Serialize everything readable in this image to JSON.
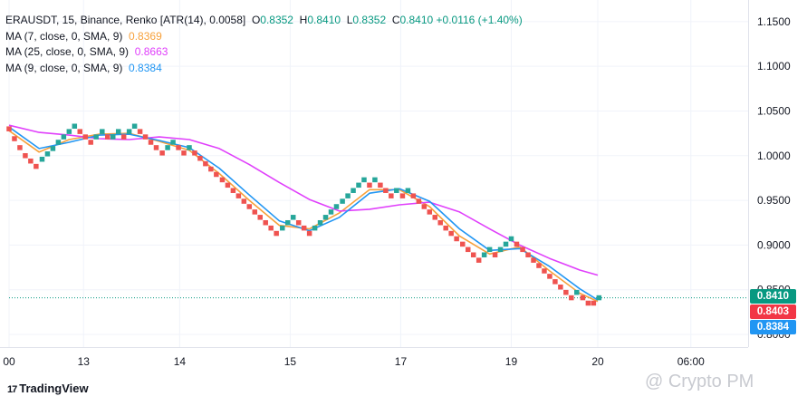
{
  "header": {
    "title": "ERAUSDT, 15, Binance, Renko [ATR(14), 0.0058]",
    "ohlc": [
      {
        "k": "O",
        "v": "0.8352"
      },
      {
        "k": "H",
        "v": "0.8410"
      },
      {
        "k": "L",
        "v": "0.8352"
      },
      {
        "k": "C",
        "v": "0.8410"
      }
    ],
    "change": "+0.0116 (+1.40%)"
  },
  "indicators": [
    {
      "label": "MA (7, close, 0, SMA, 9)",
      "value": "0.8369",
      "color": "#f7a13b"
    },
    {
      "label": "MA (25, close, 0, SMA, 9)",
      "value": "0.8663",
      "color": "#e040fb"
    },
    {
      "label": "MA (9, close, 0, SMA, 9)",
      "value": "0.8384",
      "color": "#2196f3"
    }
  ],
  "price_tags": [
    {
      "value": "0.8410",
      "color": "#089981"
    },
    {
      "value": "0.8403",
      "color": "#f23645"
    },
    {
      "value": "0.8384",
      "color": "#2196f3"
    }
  ],
  "footer": {
    "brand": "TradingView",
    "brand_mark": "17",
    "watermark": "@ Crypto PM"
  },
  "colors": {
    "up": "#26a69a",
    "down": "#ef5350",
    "grid": "#f0f3fa",
    "last_line": "#089981"
  },
  "chart_data": {
    "type": "renko",
    "title": "ERAUSDT, 15, Binance, Renko [ATR(14), 0.0058]",
    "ylim": [
      0.8,
      1.16
    ],
    "y_ticks": [
      1.15,
      1.1,
      1.05,
      1.0,
      0.95,
      0.9,
      0.85,
      0.8
    ],
    "y_tick_labels": [
      "1.1500",
      "1.1000",
      "1.0500",
      "1.0000",
      "0.9500",
      "0.9000",
      "0.8500",
      "0.8000"
    ],
    "x_ticks": [
      {
        "label": "00",
        "t": 0
      },
      {
        "label": "13",
        "t": 0.124
      },
      {
        "label": "14",
        "t": 0.284
      },
      {
        "label": "15",
        "t": 0.468
      },
      {
        "label": "17",
        "t": 0.652
      },
      {
        "label": "19",
        "t": 0.836
      },
      {
        "label": "20",
        "t": 0.98
      },
      {
        "label": "06:00",
        "t": 1.135
      }
    ],
    "bricks": [
      {
        "t": 0.0,
        "y": 1.03,
        "dir": "down"
      },
      {
        "t": 0.009,
        "y": 1.019,
        "dir": "down"
      },
      {
        "t": 0.018,
        "y": 1.009,
        "dir": "down"
      },
      {
        "t": 0.027,
        "y": 1.0,
        "dir": "down"
      },
      {
        "t": 0.036,
        "y": 0.994,
        "dir": "down"
      },
      {
        "t": 0.045,
        "y": 0.988,
        "dir": "down"
      },
      {
        "t": 0.055,
        "y": 0.996,
        "dir": "up"
      },
      {
        "t": 0.064,
        "y": 1.002,
        "dir": "up"
      },
      {
        "t": 0.073,
        "y": 1.008,
        "dir": "up"
      },
      {
        "t": 0.082,
        "y": 1.015,
        "dir": "up"
      },
      {
        "t": 0.091,
        "y": 1.021,
        "dir": "up"
      },
      {
        "t": 0.1,
        "y": 1.027,
        "dir": "up"
      },
      {
        "t": 0.109,
        "y": 1.033,
        "dir": "up"
      },
      {
        "t": 0.118,
        "y": 1.027,
        "dir": "down"
      },
      {
        "t": 0.127,
        "y": 1.021,
        "dir": "down"
      },
      {
        "t": 0.136,
        "y": 1.015,
        "dir": "down"
      },
      {
        "t": 0.145,
        "y": 1.021,
        "dir": "up"
      },
      {
        "t": 0.155,
        "y": 1.027,
        "dir": "up"
      },
      {
        "t": 0.164,
        "y": 1.021,
        "dir": "down"
      },
      {
        "t": 0.173,
        "y": 1.021,
        "dir": "up"
      },
      {
        "t": 0.182,
        "y": 1.027,
        "dir": "up"
      },
      {
        "t": 0.191,
        "y": 1.021,
        "dir": "down"
      },
      {
        "t": 0.2,
        "y": 1.027,
        "dir": "up"
      },
      {
        "t": 0.209,
        "y": 1.033,
        "dir": "up"
      },
      {
        "t": 0.218,
        "y": 1.027,
        "dir": "down"
      },
      {
        "t": 0.227,
        "y": 1.021,
        "dir": "down"
      },
      {
        "t": 0.236,
        "y": 1.015,
        "dir": "down"
      },
      {
        "t": 0.245,
        "y": 1.009,
        "dir": "down"
      },
      {
        "t": 0.255,
        "y": 1.003,
        "dir": "down"
      },
      {
        "t": 0.264,
        "y": 1.009,
        "dir": "up"
      },
      {
        "t": 0.273,
        "y": 1.015,
        "dir": "up"
      },
      {
        "t": 0.282,
        "y": 1.009,
        "dir": "down"
      },
      {
        "t": 0.291,
        "y": 1.003,
        "dir": "down"
      },
      {
        "t": 0.3,
        "y": 1.009,
        "dir": "up"
      },
      {
        "t": 0.309,
        "y": 1.003,
        "dir": "down"
      },
      {
        "t": 0.318,
        "y": 0.997,
        "dir": "down"
      },
      {
        "t": 0.327,
        "y": 0.991,
        "dir": "down"
      },
      {
        "t": 0.336,
        "y": 0.985,
        "dir": "down"
      },
      {
        "t": 0.345,
        "y": 0.979,
        "dir": "down"
      },
      {
        "t": 0.355,
        "y": 0.973,
        "dir": "down"
      },
      {
        "t": 0.364,
        "y": 0.967,
        "dir": "down"
      },
      {
        "t": 0.373,
        "y": 0.961,
        "dir": "down"
      },
      {
        "t": 0.382,
        "y": 0.955,
        "dir": "down"
      },
      {
        "t": 0.391,
        "y": 0.949,
        "dir": "down"
      },
      {
        "t": 0.4,
        "y": 0.943,
        "dir": "down"
      },
      {
        "t": 0.409,
        "y": 0.937,
        "dir": "down"
      },
      {
        "t": 0.418,
        "y": 0.931,
        "dir": "down"
      },
      {
        "t": 0.427,
        "y": 0.925,
        "dir": "down"
      },
      {
        "t": 0.436,
        "y": 0.919,
        "dir": "down"
      },
      {
        "t": 0.445,
        "y": 0.913,
        "dir": "down"
      },
      {
        "t": 0.455,
        "y": 0.919,
        "dir": "up"
      },
      {
        "t": 0.464,
        "y": 0.925,
        "dir": "up"
      },
      {
        "t": 0.473,
        "y": 0.931,
        "dir": "up"
      },
      {
        "t": 0.482,
        "y": 0.925,
        "dir": "down"
      },
      {
        "t": 0.491,
        "y": 0.919,
        "dir": "down"
      },
      {
        "t": 0.5,
        "y": 0.913,
        "dir": "down"
      },
      {
        "t": 0.509,
        "y": 0.919,
        "dir": "up"
      },
      {
        "t": 0.518,
        "y": 0.925,
        "dir": "up"
      },
      {
        "t": 0.527,
        "y": 0.931,
        "dir": "up"
      },
      {
        "t": 0.536,
        "y": 0.937,
        "dir": "up"
      },
      {
        "t": 0.545,
        "y": 0.943,
        "dir": "up"
      },
      {
        "t": 0.555,
        "y": 0.949,
        "dir": "up"
      },
      {
        "t": 0.564,
        "y": 0.955,
        "dir": "up"
      },
      {
        "t": 0.573,
        "y": 0.961,
        "dir": "up"
      },
      {
        "t": 0.582,
        "y": 0.967,
        "dir": "up"
      },
      {
        "t": 0.591,
        "y": 0.973,
        "dir": "up"
      },
      {
        "t": 0.6,
        "y": 0.967,
        "dir": "down"
      },
      {
        "t": 0.609,
        "y": 0.973,
        "dir": "up"
      },
      {
        "t": 0.618,
        "y": 0.967,
        "dir": "down"
      },
      {
        "t": 0.627,
        "y": 0.961,
        "dir": "down"
      },
      {
        "t": 0.636,
        "y": 0.955,
        "dir": "down"
      },
      {
        "t": 0.645,
        "y": 0.961,
        "dir": "up"
      },
      {
        "t": 0.655,
        "y": 0.955,
        "dir": "down"
      },
      {
        "t": 0.664,
        "y": 0.961,
        "dir": "up"
      },
      {
        "t": 0.673,
        "y": 0.955,
        "dir": "down"
      },
      {
        "t": 0.682,
        "y": 0.949,
        "dir": "down"
      },
      {
        "t": 0.691,
        "y": 0.943,
        "dir": "down"
      },
      {
        "t": 0.7,
        "y": 0.937,
        "dir": "down"
      },
      {
        "t": 0.709,
        "y": 0.931,
        "dir": "down"
      },
      {
        "t": 0.718,
        "y": 0.925,
        "dir": "down"
      },
      {
        "t": 0.727,
        "y": 0.919,
        "dir": "down"
      },
      {
        "t": 0.736,
        "y": 0.913,
        "dir": "down"
      },
      {
        "t": 0.745,
        "y": 0.907,
        "dir": "down"
      },
      {
        "t": 0.755,
        "y": 0.901,
        "dir": "down"
      },
      {
        "t": 0.764,
        "y": 0.895,
        "dir": "down"
      },
      {
        "t": 0.773,
        "y": 0.889,
        "dir": "down"
      },
      {
        "t": 0.782,
        "y": 0.883,
        "dir": "down"
      },
      {
        "t": 0.791,
        "y": 0.889,
        "dir": "up"
      },
      {
        "t": 0.8,
        "y": 0.895,
        "dir": "up"
      },
      {
        "t": 0.809,
        "y": 0.889,
        "dir": "down"
      },
      {
        "t": 0.818,
        "y": 0.895,
        "dir": "up"
      },
      {
        "t": 0.827,
        "y": 0.901,
        "dir": "up"
      },
      {
        "t": 0.836,
        "y": 0.907,
        "dir": "up"
      },
      {
        "t": 0.845,
        "y": 0.901,
        "dir": "down"
      },
      {
        "t": 0.855,
        "y": 0.895,
        "dir": "down"
      },
      {
        "t": 0.864,
        "y": 0.889,
        "dir": "down"
      },
      {
        "t": 0.873,
        "y": 0.883,
        "dir": "down"
      },
      {
        "t": 0.882,
        "y": 0.877,
        "dir": "down"
      },
      {
        "t": 0.891,
        "y": 0.871,
        "dir": "down"
      },
      {
        "t": 0.9,
        "y": 0.865,
        "dir": "down"
      },
      {
        "t": 0.909,
        "y": 0.859,
        "dir": "down"
      },
      {
        "t": 0.918,
        "y": 0.853,
        "dir": "down"
      },
      {
        "t": 0.927,
        "y": 0.847,
        "dir": "down"
      },
      {
        "t": 0.936,
        "y": 0.841,
        "dir": "down"
      },
      {
        "t": 0.945,
        "y": 0.847,
        "dir": "up"
      },
      {
        "t": 0.955,
        "y": 0.841,
        "dir": "down"
      },
      {
        "t": 0.964,
        "y": 0.835,
        "dir": "down"
      },
      {
        "t": 0.973,
        "y": 0.835,
        "dir": "down"
      },
      {
        "t": 0.982,
        "y": 0.841,
        "dir": "up"
      }
    ],
    "series": [
      {
        "name": "MA (7, close, 0, SMA, 9)",
        "color": "#f7a13b",
        "points": [
          [
            0,
            1.028
          ],
          [
            0.05,
            1.004
          ],
          [
            0.1,
            1.018
          ],
          [
            0.15,
            1.024
          ],
          [
            0.2,
            1.025
          ],
          [
            0.25,
            1.016
          ],
          [
            0.3,
            1.006
          ],
          [
            0.35,
            0.98
          ],
          [
            0.4,
            0.95
          ],
          [
            0.45,
            0.922
          ],
          [
            0.5,
            0.918
          ],
          [
            0.55,
            0.936
          ],
          [
            0.6,
            0.962
          ],
          [
            0.65,
            0.962
          ],
          [
            0.7,
            0.943
          ],
          [
            0.75,
            0.91
          ],
          [
            0.8,
            0.89
          ],
          [
            0.85,
            0.898
          ],
          [
            0.9,
            0.871
          ],
          [
            0.95,
            0.846
          ],
          [
            0.98,
            0.8369
          ]
        ]
      },
      {
        "name": "MA (25, close, 0, SMA, 9)",
        "color": "#e040fb",
        "points": [
          [
            0,
            1.034
          ],
          [
            0.05,
            1.026
          ],
          [
            0.1,
            1.023
          ],
          [
            0.15,
            1.019
          ],
          [
            0.2,
            1.018
          ],
          [
            0.25,
            1.021
          ],
          [
            0.3,
            1.018
          ],
          [
            0.35,
            1.008
          ],
          [
            0.4,
            0.99
          ],
          [
            0.45,
            0.97
          ],
          [
            0.5,
            0.951
          ],
          [
            0.55,
            0.938
          ],
          [
            0.6,
            0.94
          ],
          [
            0.65,
            0.945
          ],
          [
            0.7,
            0.948
          ],
          [
            0.75,
            0.937
          ],
          [
            0.8,
            0.918
          ],
          [
            0.85,
            0.9
          ],
          [
            0.9,
            0.885
          ],
          [
            0.95,
            0.872
          ],
          [
            0.98,
            0.8663
          ]
        ]
      },
      {
        "name": "MA (9, close, 0, SMA, 9)",
        "color": "#2196f3",
        "points": [
          [
            0,
            1.032
          ],
          [
            0.05,
            1.008
          ],
          [
            0.1,
            1.015
          ],
          [
            0.15,
            1.023
          ],
          [
            0.2,
            1.024
          ],
          [
            0.25,
            1.017
          ],
          [
            0.3,
            1.009
          ],
          [
            0.35,
            0.986
          ],
          [
            0.4,
            0.956
          ],
          [
            0.45,
            0.927
          ],
          [
            0.5,
            0.916
          ],
          [
            0.55,
            0.931
          ],
          [
            0.6,
            0.958
          ],
          [
            0.65,
            0.963
          ],
          [
            0.7,
            0.949
          ],
          [
            0.75,
            0.918
          ],
          [
            0.8,
            0.894
          ],
          [
            0.85,
            0.896
          ],
          [
            0.9,
            0.876
          ],
          [
            0.95,
            0.851
          ],
          [
            0.98,
            0.8384
          ]
        ]
      }
    ],
    "last_price": 0.841
  }
}
